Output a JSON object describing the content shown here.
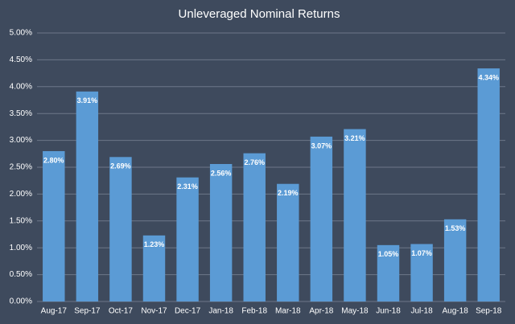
{
  "chart_data": {
    "type": "bar",
    "title": "Unleveraged Nominal Returns",
    "categories": [
      "Aug-17",
      "Sep-17",
      "Oct-17",
      "Nov-17",
      "Dec-17",
      "Jan-18",
      "Feb-18",
      "Mar-18",
      "Apr-18",
      "May-18",
      "Jun-18",
      "Jul-18",
      "Aug-18",
      "Sep-18"
    ],
    "values": [
      2.8,
      3.91,
      2.69,
      1.23,
      2.31,
      2.56,
      2.76,
      2.19,
      3.07,
      3.21,
      1.05,
      1.07,
      1.53,
      4.34
    ],
    "value_labels": [
      "2.80%",
      "3.91%",
      "2.69%",
      "1.23%",
      "2.31%",
      "2.56%",
      "2.76%",
      "2.19%",
      "3.07%",
      "3.21%",
      "1.05%",
      "1.07%",
      "1.53%",
      "4.34%"
    ],
    "color": "#5b9bd5",
    "ylim": [
      0,
      5
    ],
    "yticks": [
      {
        "value": 0,
        "label": "0.00%"
      },
      {
        "value": 0.5,
        "label": "0.50%"
      },
      {
        "value": 1,
        "label": "1.00%"
      },
      {
        "value": 1.5,
        "label": "1.50%"
      },
      {
        "value": 2,
        "label": "2.00%"
      },
      {
        "value": 2.5,
        "label": "2.50%"
      },
      {
        "value": 3,
        "label": "3.00%"
      },
      {
        "value": 3.5,
        "label": "3.50%"
      },
      {
        "value": 4,
        "label": "4.00%"
      },
      {
        "value": 4.5,
        "label": "4.50%"
      },
      {
        "value": 5,
        "label": "5.00%"
      }
    ],
    "grid": true
  }
}
